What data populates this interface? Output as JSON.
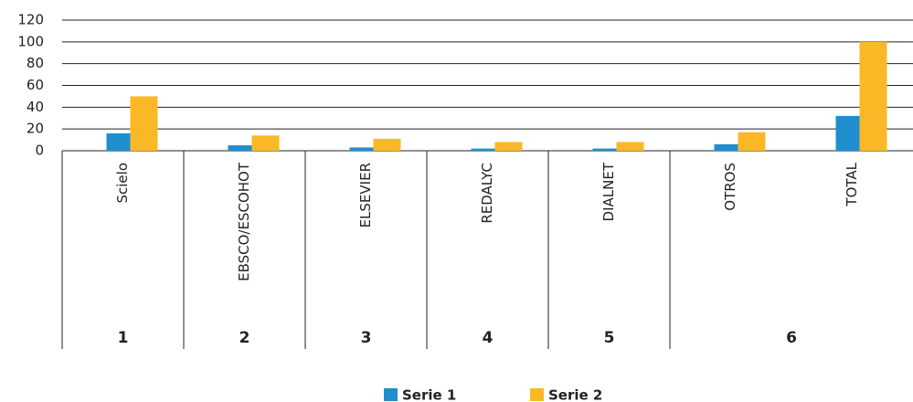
{
  "chart_data": {
    "type": "bar",
    "groups": [
      {
        "label": "1",
        "categories": [
          "Scielo"
        ]
      },
      {
        "label": "2",
        "categories": [
          "EBSCO/ESCOHOT"
        ]
      },
      {
        "label": "3",
        "categories": [
          "ELSEVIER"
        ]
      },
      {
        "label": "4",
        "categories": [
          "REDALYC"
        ]
      },
      {
        "label": "5",
        "categories": [
          "DIALNET"
        ]
      },
      {
        "label": "6",
        "categories": [
          "OTROS",
          "TOTAL"
        ]
      }
    ],
    "series": [
      {
        "name": "Serie 1",
        "color": "#1f8fd0",
        "values": [
          16,
          5,
          3,
          2,
          2,
          6,
          32
        ]
      },
      {
        "name": "Serie 2",
        "color": "#fbb826",
        "values": [
          50,
          14,
          11,
          8,
          8,
          17,
          100
        ]
      }
    ],
    "ylim": [
      0,
      120
    ],
    "yticks": [
      0,
      20,
      40,
      60,
      80,
      100,
      120
    ],
    "grid": true,
    "legend": "bottom"
  }
}
